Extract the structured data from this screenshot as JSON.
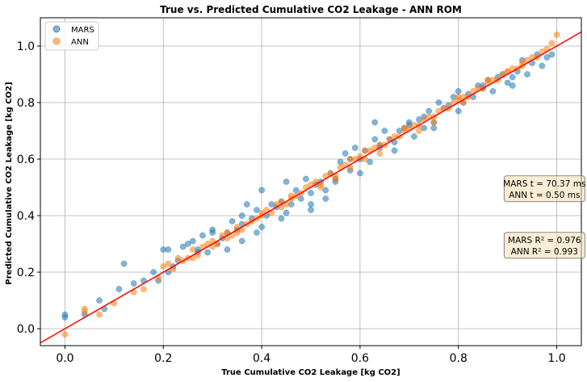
{
  "chart_data": {
    "type": "scatter",
    "title": "True vs. Predicted Cumulative CO2 Leakage - ANN ROM",
    "xlabel": "True Cumulative CO2 Leakage [kg CO2]",
    "ylabel": "Predicted Cumulative CO2 Leakage [kg CO2]",
    "xlim": [
      -0.05,
      1.05
    ],
    "ylim": [
      -0.06,
      1.1
    ],
    "xticks": [
      0.0,
      0.2,
      0.4,
      0.6,
      0.8,
      1.0
    ],
    "yticks": [
      0.0,
      0.2,
      0.4,
      0.6,
      0.8,
      1.0
    ],
    "xtick_labels": [
      "0.0",
      "0.2",
      "0.4",
      "0.6",
      "0.8",
      "1.0"
    ],
    "ytick_labels": [
      "0.0",
      "0.2",
      "0.4",
      "0.6",
      "0.8",
      "1.0"
    ],
    "grid": true,
    "legend_position": "top-left",
    "reference_line": {
      "type": "y=x",
      "color": "#ff0000"
    },
    "series": [
      {
        "name": "MARS",
        "color": "#1f77b4",
        "x": [
          0.0,
          0.0,
          0.04,
          0.07,
          0.08,
          0.11,
          0.12,
          0.14,
          0.16,
          0.18,
          0.19,
          0.2,
          0.21,
          0.22,
          0.23,
          0.24,
          0.25,
          0.26,
          0.27,
          0.28,
          0.29,
          0.3,
          0.31,
          0.32,
          0.33,
          0.34,
          0.35,
          0.36,
          0.37,
          0.38,
          0.39,
          0.4,
          0.41,
          0.42,
          0.43,
          0.44,
          0.45,
          0.46,
          0.47,
          0.48,
          0.49,
          0.5,
          0.51,
          0.52,
          0.53,
          0.54,
          0.55,
          0.56,
          0.57,
          0.58,
          0.59,
          0.6,
          0.61,
          0.62,
          0.63,
          0.64,
          0.65,
          0.66,
          0.67,
          0.68,
          0.69,
          0.7,
          0.71,
          0.72,
          0.73,
          0.74,
          0.75,
          0.76,
          0.77,
          0.78,
          0.79,
          0.8,
          0.81,
          0.82,
          0.83,
          0.84,
          0.85,
          0.86,
          0.87,
          0.88,
          0.89,
          0.9,
          0.91,
          0.92,
          0.93,
          0.94,
          0.95,
          0.96,
          0.97,
          0.98,
          0.99,
          0.3,
          0.33,
          0.36,
          0.4,
          0.45,
          0.5,
          0.55,
          0.6,
          0.64,
          0.7,
          0.75,
          0.8,
          0.85,
          0.91,
          0.39,
          0.36,
          0.53,
          0.63,
          0.58,
          0.73,
          0.21,
          0.27,
          0.44,
          0.5,
          0.67
        ],
        "y": [
          0.04,
          0.05,
          0.05,
          0.1,
          0.07,
          0.14,
          0.23,
          0.16,
          0.17,
          0.2,
          0.17,
          0.28,
          0.2,
          0.22,
          0.24,
          0.29,
          0.3,
          0.31,
          0.28,
          0.33,
          0.27,
          0.34,
          0.3,
          0.32,
          0.28,
          0.38,
          0.35,
          0.4,
          0.44,
          0.39,
          0.34,
          0.49,
          0.4,
          0.44,
          0.43,
          0.45,
          0.52,
          0.44,
          0.49,
          0.46,
          0.53,
          0.48,
          0.51,
          0.52,
          0.49,
          0.55,
          0.52,
          0.59,
          0.62,
          0.56,
          0.64,
          0.6,
          0.63,
          0.59,
          0.73,
          0.65,
          0.7,
          0.67,
          0.63,
          0.7,
          0.71,
          0.72,
          0.68,
          0.74,
          0.71,
          0.77,
          0.73,
          0.8,
          0.78,
          0.79,
          0.82,
          0.84,
          0.8,
          0.83,
          0.82,
          0.86,
          0.85,
          0.88,
          0.84,
          0.89,
          0.9,
          0.87,
          0.89,
          0.91,
          0.95,
          0.9,
          0.94,
          0.97,
          0.93,
          0.96,
          0.97,
          0.35,
          0.34,
          0.31,
          0.36,
          0.41,
          0.44,
          0.53,
          0.55,
          0.64,
          0.73,
          0.71,
          0.77,
          0.86,
          0.86,
          0.42,
          0.37,
          0.46,
          0.67,
          0.6,
          0.75,
          0.28,
          0.27,
          0.39,
          0.42,
          0.66
        ]
      },
      {
        "name": "ANN",
        "color": "#ff7f0e",
        "x": [
          0.0,
          0.04,
          0.04,
          0.07,
          0.1,
          0.14,
          0.16,
          0.19,
          0.2,
          0.21,
          0.22,
          0.23,
          0.24,
          0.25,
          0.26,
          0.27,
          0.28,
          0.29,
          0.3,
          0.31,
          0.32,
          0.33,
          0.34,
          0.35,
          0.36,
          0.37,
          0.38,
          0.39,
          0.4,
          0.41,
          0.42,
          0.43,
          0.44,
          0.45,
          0.46,
          0.47,
          0.48,
          0.49,
          0.5,
          0.51,
          0.52,
          0.53,
          0.54,
          0.55,
          0.56,
          0.57,
          0.58,
          0.59,
          0.6,
          0.61,
          0.62,
          0.63,
          0.64,
          0.65,
          0.66,
          0.67,
          0.68,
          0.69,
          0.7,
          0.71,
          0.72,
          0.73,
          0.74,
          0.75,
          0.76,
          0.77,
          0.78,
          0.79,
          0.8,
          0.81,
          0.82,
          0.83,
          0.84,
          0.85,
          0.86,
          0.87,
          0.88,
          0.89,
          0.9,
          0.91,
          0.92,
          0.93,
          0.94,
          0.95,
          0.96,
          0.97,
          0.98,
          0.99,
          1.0,
          0.3,
          0.35,
          0.4,
          0.46,
          0.52,
          0.58,
          0.64,
          0.69,
          0.75,
          0.81,
          0.86,
          0.93,
          0.26,
          0.33,
          0.44,
          0.55,
          0.61,
          0.72,
          0.8,
          0.9
        ],
        "y": [
          -0.02,
          0.06,
          0.07,
          0.05,
          0.09,
          0.13,
          0.14,
          0.18,
          0.22,
          0.23,
          0.21,
          0.25,
          0.24,
          0.25,
          0.28,
          0.26,
          0.29,
          0.3,
          0.31,
          0.3,
          0.33,
          0.34,
          0.33,
          0.36,
          0.35,
          0.37,
          0.38,
          0.39,
          0.41,
          0.42,
          0.41,
          0.44,
          0.45,
          0.44,
          0.46,
          0.47,
          0.48,
          0.5,
          0.51,
          0.52,
          0.51,
          0.54,
          0.55,
          0.54,
          0.57,
          0.58,
          0.57,
          0.6,
          0.61,
          0.6,
          0.63,
          0.64,
          0.65,
          0.65,
          0.67,
          0.68,
          0.68,
          0.7,
          0.71,
          0.72,
          0.72,
          0.74,
          0.75,
          0.75,
          0.77,
          0.78,
          0.78,
          0.8,
          0.81,
          0.82,
          0.82,
          0.84,
          0.85,
          0.85,
          0.87,
          0.88,
          0.88,
          0.9,
          0.91,
          0.92,
          0.92,
          0.94,
          0.95,
          0.96,
          0.96,
          0.98,
          0.99,
          1.01,
          1.04,
          0.29,
          0.34,
          0.4,
          0.47,
          0.5,
          0.6,
          0.62,
          0.71,
          0.73,
          0.8,
          0.88,
          0.93,
          0.25,
          0.32,
          0.43,
          0.53,
          0.63,
          0.7,
          0.82,
          0.91
        ]
      }
    ],
    "annotations": [
      {
        "lines": [
          "MARS t = 70.37 ms",
          "ANN t = 0.50 ms"
        ],
        "x": 0.975,
        "y": 0.495
      },
      {
        "lines": [
          "MARS R² = 0.976",
          "ANN R² = 0.993"
        ],
        "x": 0.975,
        "y": 0.295
      }
    ]
  }
}
